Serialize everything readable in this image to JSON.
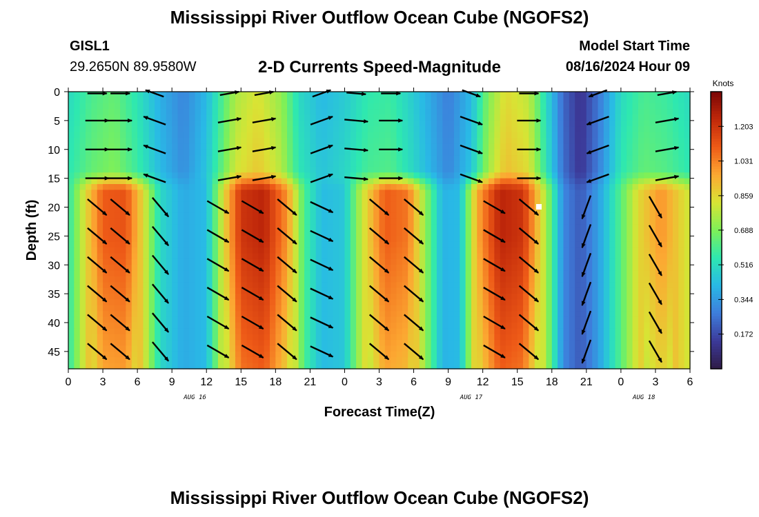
{
  "header": {
    "title": "Mississippi River Outflow Ocean Cube (NGOFS2)",
    "station": "GISL1",
    "latlon": "29.2650N  89.9580W",
    "panel_title": "2-D Currents Speed-Magnitude",
    "model_start_label": "Model Start Time",
    "model_start_time": "08/16/2024 Hour 09"
  },
  "footer": {
    "title": "Mississippi River Outflow Ocean Cube (NGOFS2)"
  },
  "chart_data": {
    "type": "heatmap",
    "xlabel": "Forecast Time(Z)",
    "ylabel": "Depth (ft)",
    "x_tick_labels": [
      "0",
      "3",
      "6",
      "9",
      "12",
      "15",
      "18",
      "21",
      "0",
      "3",
      "6",
      "9",
      "12",
      "15",
      "18",
      "21",
      "0",
      "3",
      "6"
    ],
    "date_labels": [
      {
        "label": "AUG 16",
        "hour": 11
      },
      {
        "label": "AUG 17",
        "hour": 35
      },
      {
        "label": "AUG 18",
        "hour": 50
      }
    ],
    "xlim_hours": [
      0,
      54
    ],
    "y_tick_labels": [
      "0",
      "5",
      "10",
      "15",
      "20",
      "25",
      "30",
      "35",
      "40",
      "45"
    ],
    "ylim_ft": [
      0,
      48
    ],
    "colorbar": {
      "unit": "Knots",
      "tick_labels": [
        "1.203",
        "1.031",
        "0.859",
        "0.688",
        "0.516",
        "0.344",
        "0.172"
      ],
      "tick_values": [
        1.203,
        1.031,
        0.859,
        0.688,
        0.516,
        0.344,
        0.172
      ],
      "range": [
        0.0,
        1.375
      ],
      "colors": [
        "#2e1b46",
        "#3c3a99",
        "#3e7ddb",
        "#29b9e6",
        "#2ee8b0",
        "#7ef058",
        "#d8e434",
        "#fca832",
        "#ee5a17",
        "#c0280a",
        "#7a0606"
      ]
    },
    "speed_profile_upper": [
      {
        "t": 0,
        "v": 0.55
      },
      {
        "t": 2,
        "v": 0.65
      },
      {
        "t": 4,
        "v": 0.7
      },
      {
        "t": 6,
        "v": 0.58
      },
      {
        "t": 8,
        "v": 0.42
      },
      {
        "t": 10,
        "v": 0.32
      },
      {
        "t": 12,
        "v": 0.45
      },
      {
        "t": 14.5,
        "v": 0.82
      },
      {
        "t": 16.5,
        "v": 0.9
      },
      {
        "t": 18.5,
        "v": 0.78
      },
      {
        "t": 20,
        "v": 0.55
      },
      {
        "t": 22,
        "v": 0.45
      },
      {
        "t": 24,
        "v": 0.5
      },
      {
        "t": 26,
        "v": 0.6
      },
      {
        "t": 28,
        "v": 0.62
      },
      {
        "t": 30,
        "v": 0.5
      },
      {
        "t": 33,
        "v": 0.3
      },
      {
        "t": 35,
        "v": 0.45
      },
      {
        "t": 36.5,
        "v": 0.75
      },
      {
        "t": 38,
        "v": 0.92
      },
      {
        "t": 40,
        "v": 0.85
      },
      {
        "t": 41.5,
        "v": 0.55
      },
      {
        "t": 43,
        "v": 0.25
      },
      {
        "t": 44.5,
        "v": 0.12
      },
      {
        "t": 46,
        "v": 0.28
      },
      {
        "t": 48,
        "v": 0.55
      },
      {
        "t": 50,
        "v": 0.65
      },
      {
        "t": 52,
        "v": 0.62
      },
      {
        "t": 54,
        "v": 0.55
      }
    ],
    "speed_profile_lower": [
      {
        "t": 0,
        "v": 0.55
      },
      {
        "t": 1.5,
        "v": 0.85
      },
      {
        "t": 3,
        "v": 1.1
      },
      {
        "t": 5,
        "v": 1.12
      },
      {
        "t": 6.5,
        "v": 0.85
      },
      {
        "t": 8,
        "v": 0.5
      },
      {
        "t": 10,
        "v": 0.38
      },
      {
        "t": 12,
        "v": 0.42
      },
      {
        "t": 13.5,
        "v": 0.85
      },
      {
        "t": 15,
        "v": 1.2
      },
      {
        "t": 17,
        "v": 1.25
      },
      {
        "t": 19,
        "v": 1.0
      },
      {
        "t": 20.5,
        "v": 0.6
      },
      {
        "t": 22,
        "v": 0.42
      },
      {
        "t": 24,
        "v": 0.45
      },
      {
        "t": 25.5,
        "v": 0.8
      },
      {
        "t": 27.5,
        "v": 1.1
      },
      {
        "t": 29.5,
        "v": 1.05
      },
      {
        "t": 31,
        "v": 0.72
      },
      {
        "t": 32.5,
        "v": 0.4
      },
      {
        "t": 34,
        "v": 0.42
      },
      {
        "t": 35.5,
        "v": 0.95
      },
      {
        "t": 37.5,
        "v": 1.25
      },
      {
        "t": 39.5,
        "v": 1.2
      },
      {
        "t": 41.5,
        "v": 0.75
      },
      {
        "t": 43,
        "v": 0.3
      },
      {
        "t": 44.5,
        "v": 0.2
      },
      {
        "t": 46,
        "v": 0.35
      },
      {
        "t": 47.5,
        "v": 0.55
      },
      {
        "t": 49.5,
        "v": 0.85
      },
      {
        "t": 51.5,
        "v": 1.0
      },
      {
        "t": 54,
        "v": 0.8
      }
    ],
    "layer_break_depth_ft": 16,
    "vectors_upper": [
      {
        "t": 2.5,
        "dir": 0
      },
      {
        "t": 4.5,
        "dir": 0
      },
      {
        "t": 7.5,
        "dir": 160
      },
      {
        "t": 14,
        "dir": 10
      },
      {
        "t": 17,
        "dir": 10
      },
      {
        "t": 22,
        "dir": 20
      },
      {
        "t": 25,
        "dir": 355
      },
      {
        "t": 28,
        "dir": 0
      },
      {
        "t": 35,
        "dir": 340
      },
      {
        "t": 40,
        "dir": 0
      },
      {
        "t": 46,
        "dir": 200
      },
      {
        "t": 52,
        "dir": 10
      }
    ],
    "vectors_lower": [
      {
        "t": 2.5,
        "dir": 320
      },
      {
        "t": 4.5,
        "dir": 320
      },
      {
        "t": 8,
        "dir": 310
      },
      {
        "t": 13,
        "dir": 330
      },
      {
        "t": 16,
        "dir": 330
      },
      {
        "t": 19,
        "dir": 320
      },
      {
        "t": 22,
        "dir": 335
      },
      {
        "t": 27,
        "dir": 320
      },
      {
        "t": 30,
        "dir": 320
      },
      {
        "t": 37,
        "dir": 330
      },
      {
        "t": 40,
        "dir": 320
      },
      {
        "t": 45,
        "dir": 250
      },
      {
        "t": 51,
        "dir": 300
      }
    ]
  }
}
